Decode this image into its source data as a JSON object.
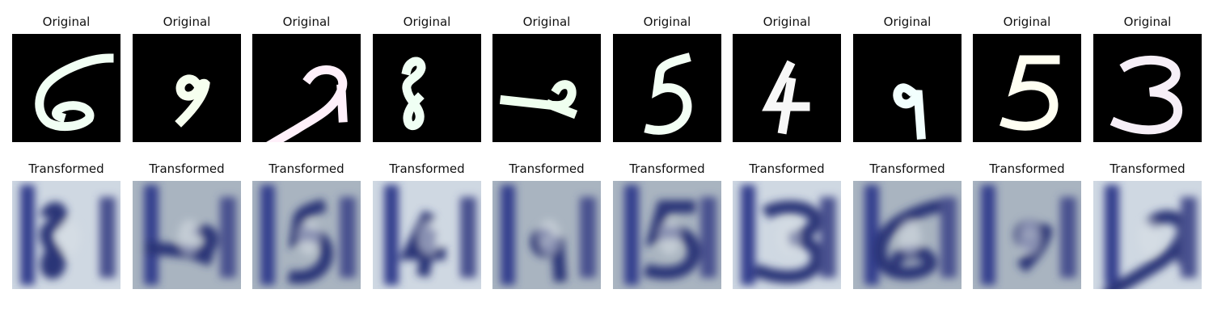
{
  "original_label": "Original",
  "transformed_label": "Transformed",
  "columns": [
    {
      "digit": "6",
      "stroke": "#f1fff4"
    },
    {
      "digit": "9",
      "stroke": "#f6ffef"
    },
    {
      "digit": "2",
      "stroke": "#fff0fa"
    },
    {
      "digit": "8",
      "stroke": "#f0fff4"
    },
    {
      "digit": "2",
      "stroke": "#efffef"
    },
    {
      "digit": "5",
      "stroke": "#f3fff5"
    },
    {
      "digit": "4",
      "stroke": "#f7f7f7"
    },
    {
      "digit": "9",
      "stroke": "#f2fffe"
    },
    {
      "digit": "5",
      "stroke": "#fffff2"
    },
    {
      "digit": "3",
      "stroke": "#f6eff7"
    }
  ],
  "colors": {
    "original_bg": "#000000",
    "transformed_blue": "#34408e",
    "transformed_light": "#d8e0e6"
  }
}
